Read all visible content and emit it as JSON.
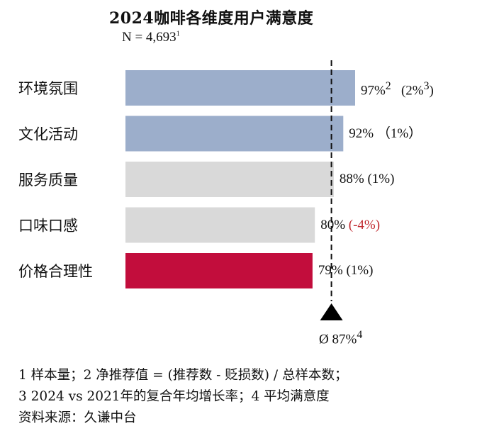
{
  "chart_data": {
    "type": "bar",
    "orientation": "horizontal",
    "title": "2024咖啡各维度用户满意度",
    "subtitle": "N = 4,693",
    "subtitle_sup": "1",
    "categories": [
      "环境氛围",
      "文化活动",
      "服务质量",
      "口味口感",
      "价格合理性"
    ],
    "values": [
      97,
      92,
      88,
      80,
      79
    ],
    "value_labels": [
      "97%",
      "92%",
      "88%",
      "80%",
      "79%"
    ],
    "value_sups": [
      "2",
      "",
      "",
      "",
      ""
    ],
    "changes": [
      "(2%",
      "（1%）",
      "(1%)",
      "(-4%)",
      "(1%)"
    ],
    "change_sups": [
      "3)",
      "",
      "",
      "",
      ""
    ],
    "change_negative": [
      false,
      false,
      false,
      true,
      false
    ],
    "bar_colors": [
      "#9caecb",
      "#9caecb",
      "#d9d9d9",
      "#d9d9d9",
      "#c20d3c"
    ],
    "average": 87,
    "average_label": "Ø 87%",
    "average_sup": "4",
    "xlim": [
      0,
      100
    ]
  },
  "footnotes": [
    "1 样本量；2 净推荐值 = (推荐数 - 贬损数) / 总样本数；",
    "3 2024 vs 2021年的复合年均增长率；4 平均满意度",
    "资料来源：久谦中台"
  ]
}
